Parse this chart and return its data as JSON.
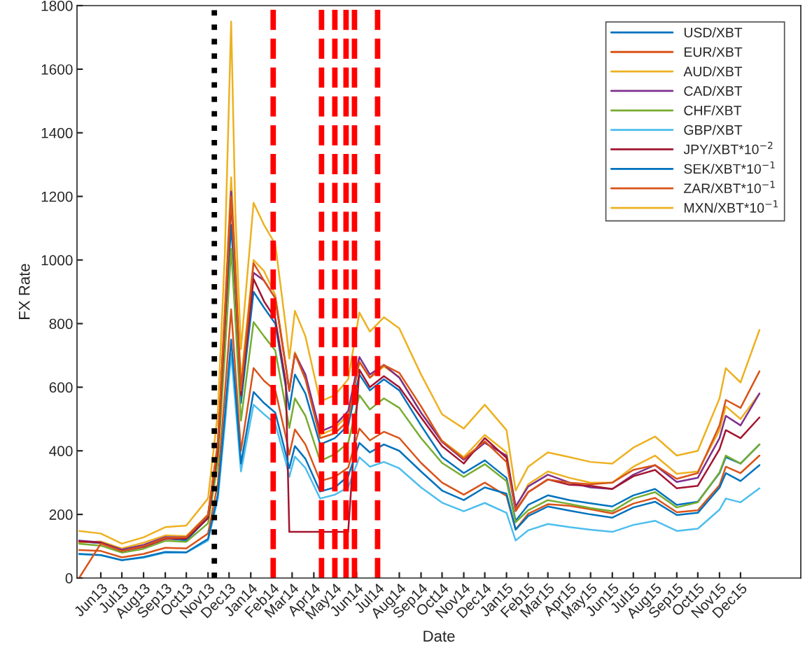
{
  "chart_data": {
    "type": "line",
    "xlabel": "Date",
    "ylabel": "FX Rate",
    "x": [
      "2013-05-01",
      "2013-06-01",
      "2013-07-01",
      "2013-08-01",
      "2013-09-01",
      "2013-10-01",
      "2013-11-01",
      "2013-11-15",
      "2013-11-25",
      "2013-12-04",
      "2013-12-10",
      "2013-12-18",
      "2014-01-05",
      "2014-01-20",
      "2014-02-05",
      "2014-02-20",
      "2014-02-25",
      "2014-03-05",
      "2014-03-20",
      "2014-04-10",
      "2014-05-01",
      "2014-05-20",
      "2014-06-05",
      "2014-06-20",
      "2014-07-10",
      "2014-08-01",
      "2014-09-01",
      "2014-10-01",
      "2014-11-01",
      "2014-12-01",
      "2015-01-01",
      "2015-01-14",
      "2015-02-01",
      "2015-03-01",
      "2015-04-01",
      "2015-05-01",
      "2015-06-01",
      "2015-07-01",
      "2015-08-01",
      "2015-09-01",
      "2015-10-01",
      "2015-11-01",
      "2015-11-10",
      "2015-12-01",
      "2015-12-28"
    ],
    "series": [
      {
        "name": "USD/XBT",
        "color": "#0072bd",
        "values": [
          115,
          110,
          85,
          100,
          125,
          118,
          190,
          400,
          780,
          1110,
          900,
          550,
          900,
          850,
          800,
          600,
          530,
          640,
          580,
          420,
          440,
          480,
          640,
          590,
          625,
          590,
          480,
          380,
          330,
          370,
          315,
          180,
          230,
          260,
          245,
          235,
          225,
          260,
          280,
          230,
          240,
          330,
          380,
          360,
          420
        ]
      },
      {
        "name": "EUR/XBT",
        "color": "#d95319",
        "values": [
          88,
          85,
          65,
          76,
          95,
          93,
          140,
          297,
          580,
          845,
          655,
          400,
          660,
          620,
          590,
          445,
          388,
          467,
          420,
          305,
          318,
          347,
          470,
          433,
          460,
          440,
          362,
          300,
          262,
          300,
          258,
          153,
          202,
          232,
          227,
          216,
          203,
          234,
          252,
          207,
          213,
          292,
          350,
          330,
          385
        ]
      },
      {
        "name": "AUD/XBT",
        "color": "#edb120",
        "values": [
          112,
          115,
          93,
          111,
          134,
          132,
          200,
          428,
          850,
          1260,
          1000,
          620,
          1000,
          965,
          890,
          670,
          590,
          710,
          635,
          450,
          470,
          515,
          680,
          630,
          665,
          632,
          520,
          432,
          380,
          450,
          395,
          220,
          295,
          335,
          315,
          300,
          300,
          350,
          385,
          328,
          335,
          465,
          540,
          500,
          580
        ]
      },
      {
        "name": "CAD/XBT",
        "color": "#7e2f8e",
        "values": [
          118,
          112,
          89,
          104,
          129,
          128,
          198,
          418,
          820,
          1215,
          955,
          585,
          960,
          935,
          880,
          665,
          588,
          705,
          640,
          460,
          480,
          525,
          695,
          640,
          670,
          630,
          520,
          428,
          372,
          425,
          385,
          225,
          288,
          325,
          300,
          285,
          280,
          325,
          355,
          302,
          315,
          440,
          510,
          480,
          580
        ]
      },
      {
        "name": "CHF/XBT",
        "color": "#77ac30",
        "values": [
          108,
          102,
          80,
          92,
          117,
          114,
          172,
          362,
          705,
          1035,
          815,
          495,
          805,
          760,
          715,
          535,
          472,
          565,
          510,
          368,
          390,
          425,
          575,
          530,
          565,
          535,
          440,
          362,
          318,
          358,
          305,
          175,
          213,
          245,
          233,
          220,
          210,
          250,
          270,
          222,
          238,
          332,
          385,
          360,
          420
        ]
      },
      {
        "name": "GBP/XBT",
        "color": "#4dbeee",
        "values": [
          75,
          72,
          56,
          64,
          80,
          80,
          118,
          248,
          480,
          705,
          550,
          335,
          545,
          515,
          485,
          365,
          318,
          382,
          346,
          250,
          262,
          285,
          380,
          350,
          365,
          345,
          285,
          237,
          210,
          236,
          205,
          118,
          150,
          170,
          160,
          152,
          145,
          167,
          180,
          148,
          155,
          215,
          250,
          238,
          282
        ]
      },
      {
        "name": "JPY/XBT*10$^{−2}$",
        "color": "#a2142f",
        "values": [
          115,
          111,
          85,
          98,
          123,
          124,
          188,
          400,
          800,
          1185,
          935,
          575,
          940,
          870,
          815,
          615,
          145,
          145,
          145,
          145,
          145,
          145,
          655,
          600,
          635,
          600,
          505,
          415,
          360,
          440,
          378,
          212,
          270,
          310,
          293,
          290,
          280,
          320,
          340,
          282,
          290,
          405,
          465,
          440,
          505
        ]
      },
      {
        "name": "SEK/XBT*10$^{−1}$",
        "color": "#0072bd",
        "values": [
          76,
          72,
          56,
          66,
          82,
          81,
          123,
          262,
          510,
          750,
          590,
          360,
          585,
          550,
          520,
          390,
          345,
          415,
          375,
          272,
          285,
          320,
          425,
          395,
          420,
          400,
          335,
          275,
          245,
          285,
          265,
          152,
          195,
          225,
          212,
          200,
          190,
          222,
          240,
          198,
          205,
          284,
          330,
          305,
          355
        ]
      },
      {
        "name": "ZAR/XBT*10$^{−1}$",
        "color": "#d95319",
        "values": [
          0,
          108,
          85,
          100,
          126,
          128,
          198,
          420,
          830,
          1200,
          940,
          590,
          990,
          935,
          880,
          665,
          590,
          705,
          625,
          440,
          455,
          495,
          680,
          630,
          670,
          645,
          540,
          430,
          375,
          430,
          365,
          210,
          270,
          310,
          300,
          295,
          300,
          340,
          355,
          312,
          330,
          480,
          560,
          535,
          650
        ]
      },
      {
        "name": "MXN/XBT*10$^{−1}$",
        "color": "#edb120",
        "values": [
          148,
          140,
          108,
          128,
          160,
          165,
          250,
          520,
          1020,
          1750,
          1150,
          720,
          1180,
          1110,
          1050,
          790,
          690,
          840,
          760,
          555,
          575,
          625,
          835,
          775,
          820,
          785,
          640,
          515,
          470,
          545,
          465,
          275,
          350,
          395,
          380,
          365,
          360,
          410,
          445,
          385,
          400,
          565,
          660,
          615,
          780
        ]
      }
    ],
    "ref_lines": [
      {
        "axis": "x",
        "value": "2013-11-10",
        "color": "#000000",
        "line_style": "dotted"
      },
      {
        "axis": "x",
        "value": "2014-02-02",
        "color": "#ff0000",
        "line_style": "dashed"
      },
      {
        "axis": "x",
        "value": "2014-04-12",
        "color": "#ff0000",
        "line_style": "dashed"
      },
      {
        "axis": "x",
        "value": "2014-05-01",
        "color": "#ff0000",
        "line_style": "dashed"
      },
      {
        "axis": "x",
        "value": "2014-05-17",
        "color": "#ff0000",
        "line_style": "dashed"
      },
      {
        "axis": "x",
        "value": "2014-05-29",
        "color": "#ff0000",
        "line_style": "dashed"
      },
      {
        "axis": "x",
        "value": "2014-07-01",
        "color": "#ff0000",
        "line_style": "dashed"
      }
    ],
    "xlim": [
      "2013-04-28",
      "2016-02-25"
    ],
    "xticks": [
      {
        "value": "2013-06-01",
        "label": "Jun13"
      },
      {
        "value": "2013-07-01",
        "label": "Jul13"
      },
      {
        "value": "2013-08-01",
        "label": "Aug13"
      },
      {
        "value": "2013-09-01",
        "label": "Sep13"
      },
      {
        "value": "2013-10-01",
        "label": "Oct13"
      },
      {
        "value": "2013-11-01",
        "label": "Nov13"
      },
      {
        "value": "2013-12-01",
        "label": "Dec13"
      },
      {
        "value": "2014-01-01",
        "label": "Jan14"
      },
      {
        "value": "2014-02-01",
        "label": "Feb14"
      },
      {
        "value": "2014-03-01",
        "label": "Mar14"
      },
      {
        "value": "2014-04-01",
        "label": "Apr14"
      },
      {
        "value": "2014-05-01",
        "label": "May14"
      },
      {
        "value": "2014-06-01",
        "label": "Jun14"
      },
      {
        "value": "2014-07-01",
        "label": "Jul14"
      },
      {
        "value": "2014-08-01",
        "label": "Aug14"
      },
      {
        "value": "2014-09-01",
        "label": "Sep14"
      },
      {
        "value": "2014-10-01",
        "label": "Oct14"
      },
      {
        "value": "2014-11-01",
        "label": "Nov14"
      },
      {
        "value": "2014-12-01",
        "label": "Dec14"
      },
      {
        "value": "2015-01-01",
        "label": "Jan15"
      },
      {
        "value": "2015-02-01",
        "label": "Feb15"
      },
      {
        "value": "2015-03-01",
        "label": "Mar15"
      },
      {
        "value": "2015-04-01",
        "label": "Apr15"
      },
      {
        "value": "2015-05-01",
        "label": "May15"
      },
      {
        "value": "2015-06-01",
        "label": "Jun15"
      },
      {
        "value": "2015-07-01",
        "label": "Jul15"
      },
      {
        "value": "2015-08-01",
        "label": "Aug15"
      },
      {
        "value": "2015-09-01",
        "label": "Sep15"
      },
      {
        "value": "2015-10-01",
        "label": "Oct15"
      },
      {
        "value": "2015-11-01",
        "label": "Nov15"
      },
      {
        "value": "2015-12-01",
        "label": "Dec15"
      }
    ],
    "ylim": [
      0,
      1800
    ],
    "yticks": [
      0,
      200,
      400,
      600,
      800,
      1000,
      1200,
      1400,
      1600,
      1800
    ],
    "grid": false,
    "legend": "top right",
    "marker": "none",
    "line_style": "solid"
  }
}
